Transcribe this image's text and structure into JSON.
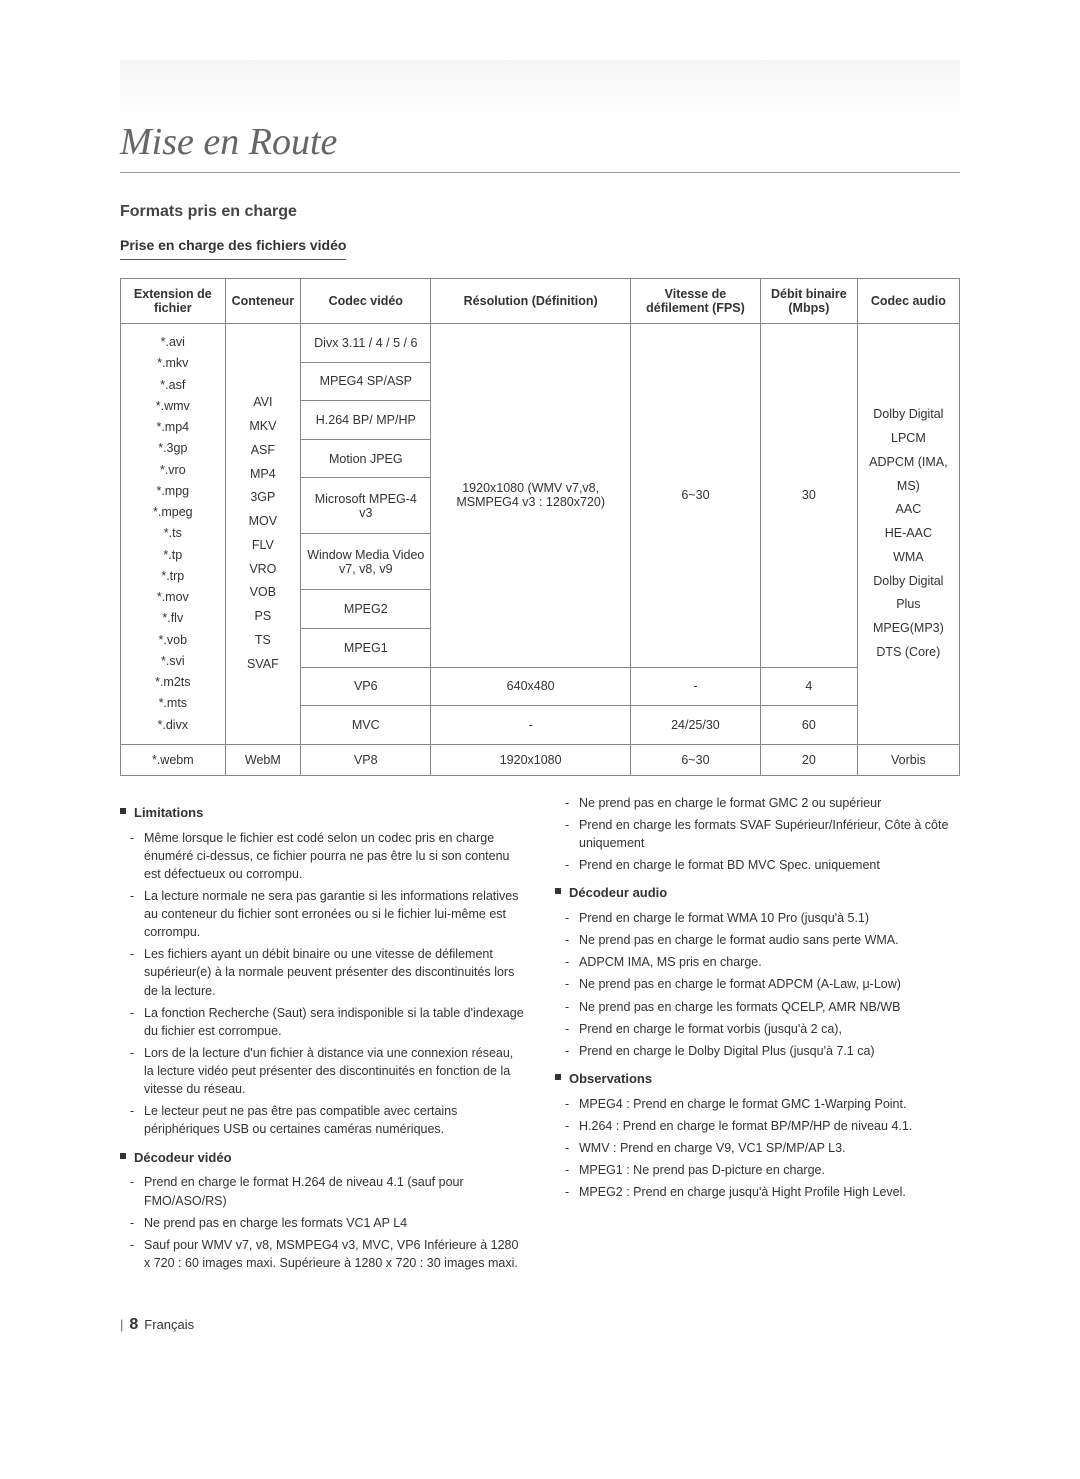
{
  "section_title": "Mise en Route",
  "heading": "Formats pris en charge",
  "subheading": "Prise en charge des fichiers vidéo",
  "table": {
    "headers": [
      "Extension de fichier",
      "Conteneur",
      "Codec vidéo",
      "Résolution (Définition)",
      "Vitesse de défilement (FPS)",
      "Débit binaire (Mbps)",
      "Codec audio"
    ],
    "ext_list": "*.avi\n*.mkv\n*.asf\n*.wmv\n*.mp4\n*.3gp\n*.vro\n*.mpg\n*.mpeg\n*.ts\n*.tp\n*.trp\n*.mov\n*.flv\n*.vob\n*.svi\n*.m2ts\n*.mts\n*.divx",
    "container_list": "AVI\nMKV\nASF\nMP4\n3GP\nMOV\nFLV\nVRO\nVOB\nPS\nTS\nSVAF",
    "vcodecs": [
      "Divx 3.11 / 4 / 5 / 6",
      "MPEG4 SP/ASP",
      "H.264 BP/ MP/HP",
      "Motion JPEG",
      "Microsoft MPEG-4 v3",
      "Window Media Video v7, v8, v9",
      "MPEG2",
      "MPEG1"
    ],
    "res_group1": "1920x1080 (WMV v7,v8, MSMPEG4 v3 : 1280x720)",
    "fps_group1": "6~30",
    "bitrate_group1": "30",
    "acodec_list": "Dolby Digital\nLPCM\nADPCM (IMA, MS)\nAAC\nHE-AAC\nWMA\nDolby Digital Plus\nMPEG(MP3)\nDTS (Core)",
    "row_vp6": {
      "codec": "VP6",
      "res": "640x480",
      "fps": "-",
      "bitrate": "4"
    },
    "row_mvc": {
      "codec": "MVC",
      "res": "-",
      "fps": "24/25/30",
      "bitrate": "60"
    },
    "row_webm": {
      "ext": "*.webm",
      "container": "WebM",
      "codec": "VP8",
      "res": "1920x1080",
      "fps": "6~30",
      "bitrate": "20",
      "acodec": "Vorbis"
    }
  },
  "left": {
    "limitations_title": "Limitations",
    "limitations": [
      "Même lorsque le fichier est codé selon un codec pris en charge énuméré ci-dessus, ce fichier pourra ne pas être lu si son contenu est défectueux ou corrompu.",
      "La lecture normale ne sera pas garantie si les informations relatives au conteneur du fichier sont erronées ou si le fichier lui-même est corrompu.",
      "Les fichiers ayant un débit binaire ou une vitesse de défilement supérieur(e) à la normale peuvent présenter des discontinuités lors de la lecture.",
      "La fonction Recherche (Saut) sera indisponible si la table d'indexage du fichier est corrompue.",
      "Lors de la lecture d'un fichier à distance via une connexion réseau, la lecture vidéo peut présenter des discontinuités en fonction de la vitesse du réseau.",
      "Le lecteur peut ne pas être pas compatible avec certains périphériques USB ou certaines caméras numériques."
    ],
    "vdec_title": "Décodeur vidéo",
    "vdec": [
      "Prend en charge le format H.264 de niveau 4.1 (sauf pour FMO/ASO/RS)",
      "Ne prend pas en charge les formats VC1 AP L4",
      "Sauf pour WMV v7, v8, MSMPEG4 v3, MVC, VP6 Inférieure à 1280 x 720 : 60 images maxi. Supérieure à 1280 x 720 : 30 images maxi."
    ]
  },
  "right": {
    "vdec_cont": [
      "Ne prend pas en charge le format GMC 2 ou supérieur",
      "Prend en charge les formats SVAF Supérieur/Inférieur, Côte à côte uniquement",
      "Prend en charge le format BD MVC Spec. uniquement"
    ],
    "adec_title": "Décodeur audio",
    "adec": [
      "Prend en charge le format WMA 10 Pro (jusqu'à 5.1)",
      "Ne prend pas en charge le format audio sans perte WMA.",
      "ADPCM IMA, MS pris en charge.",
      "Ne prend pas en charge le format ADPCM (A-Law, μ-Low)",
      "Ne prend pas en charge les formats QCELP, AMR NB/WB",
      "Prend en charge le format vorbis (jusqu'à 2 ca),",
      "Prend en charge le Dolby Digital Plus (jusqu'à 7.1 ca)"
    ],
    "obs_title": "Observations",
    "obs": [
      "MPEG4 : Prend en charge le format GMC 1-Warping Point.",
      "H.264 : Prend en charge le format BP/MP/HP de niveau 4.1.",
      "WMV : Prend en charge V9, VC1 SP/MP/AP L3.",
      "MPEG1 : Ne prend pas D-picture en charge.",
      "MPEG2 : Prend en charge jusqu'à Hight Profile High Level."
    ]
  },
  "footer": {
    "bar": "|",
    "page": "8",
    "lang": "Français"
  }
}
